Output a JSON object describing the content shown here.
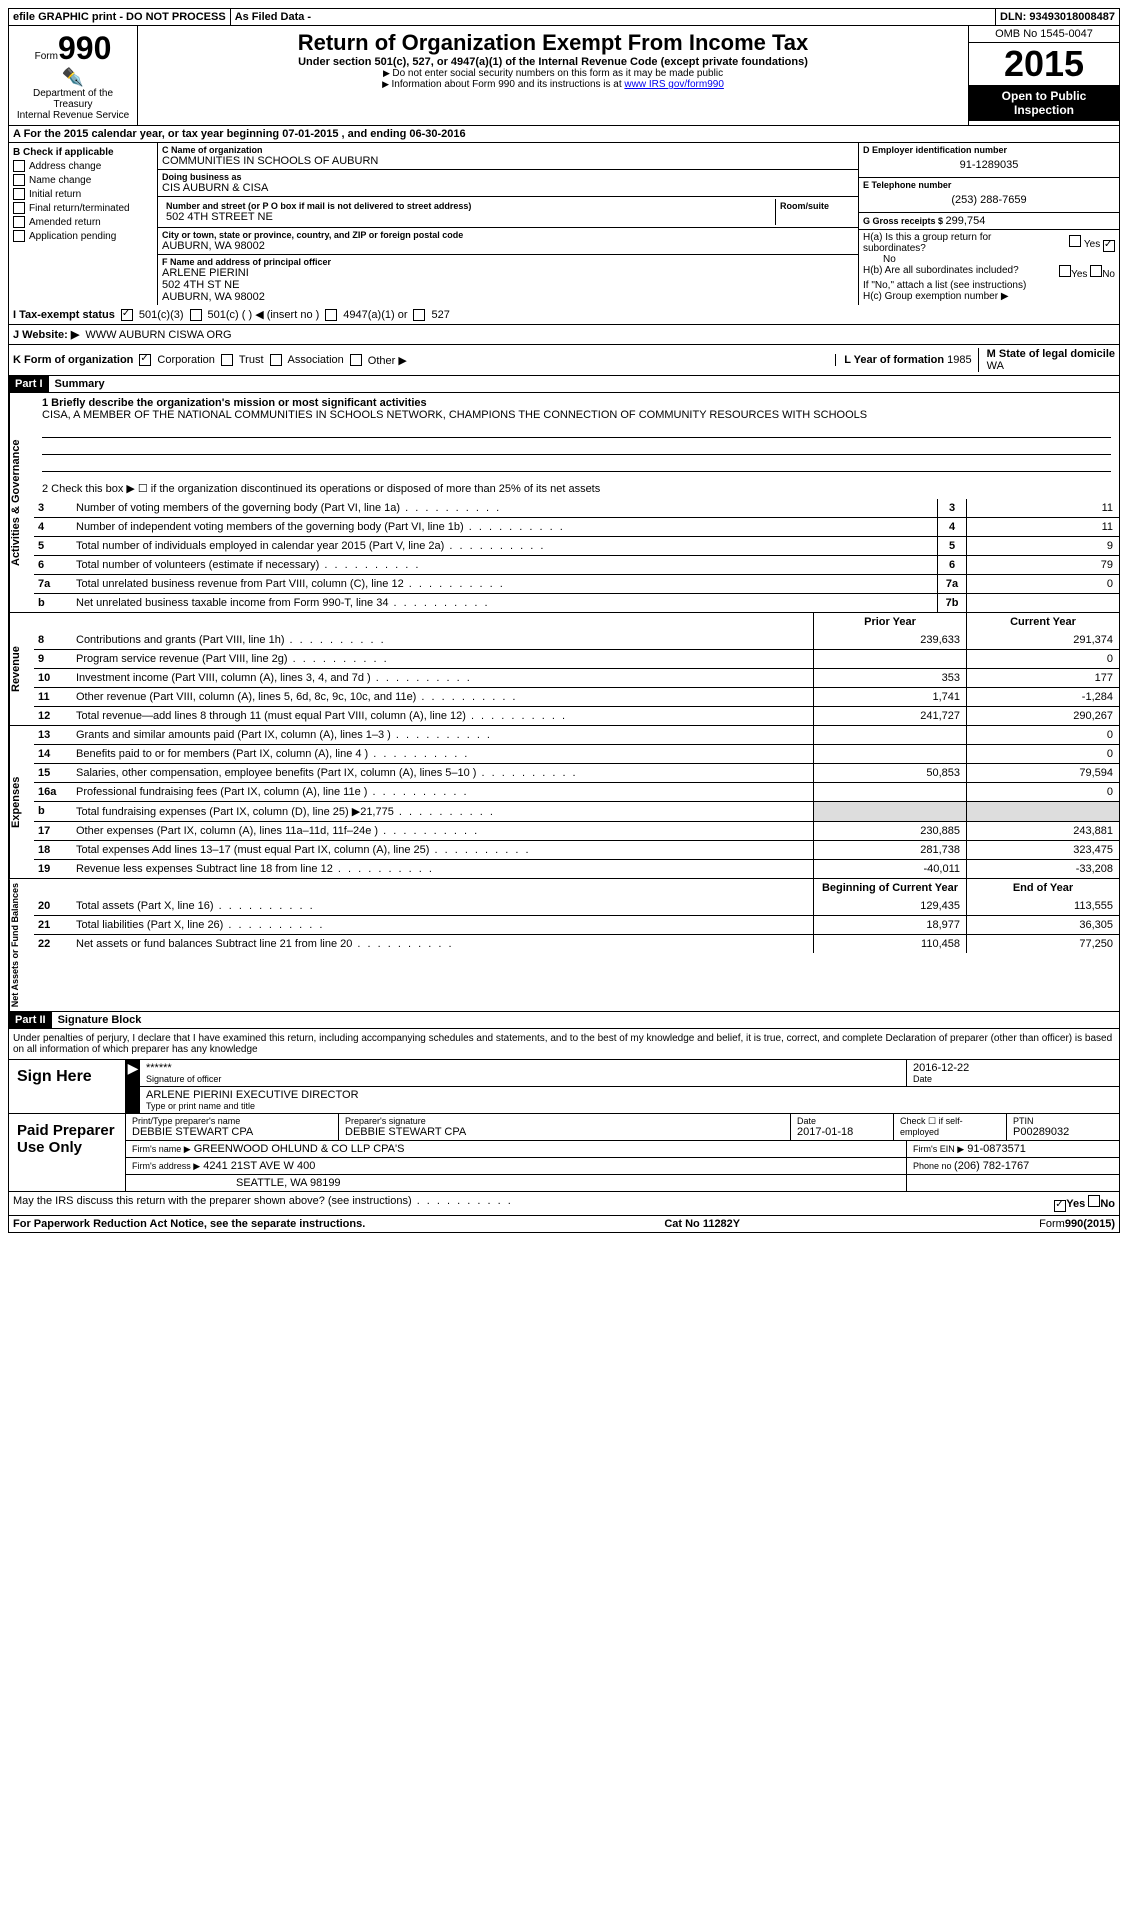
{
  "topbar": {
    "left": "efile GRAPHIC print - DO NOT PROCESS",
    "mid": "As Filed Data -",
    "dln": "DLN: 93493018008487"
  },
  "header": {
    "form_prefix": "Form",
    "form_num": "990",
    "dept1": "Department of the Treasury",
    "dept2": "Internal Revenue Service",
    "title": "Return of Organization Exempt From Income Tax",
    "subtitle": "Under section 501(c), 527, or 4947(a)(1) of the Internal Revenue Code (except private foundations)",
    "instr1": "Do not enter social security numbers on this form as it may be made public",
    "instr2_pre": "Information about Form 990 and its instructions is at ",
    "instr2_link": "www IRS gov/form990",
    "omb": "OMB No 1545-0047",
    "year": "2015",
    "open1": "Open to Public",
    "open2": "Inspection"
  },
  "rowA": {
    "text_pre": "A  For the 2015 calendar year, or tax year beginning ",
    "begin": "07-01-2015",
    "mid": " , and ending ",
    "end": "06-30-2016"
  },
  "colB": {
    "title": "B Check if applicable",
    "items": [
      "Address change",
      "Name change",
      "Initial return",
      "Final return/terminated",
      "Amended return",
      "Application pending"
    ]
  },
  "colC": {
    "name_label": "C Name of organization",
    "name": "COMMUNITIES IN SCHOOLS OF AUBURN",
    "dba_label": "Doing business as",
    "dba": "CIS AUBURN & CISA",
    "street_label": "Number and street (or P O box if mail is not delivered to street address)",
    "room_label": "Room/suite",
    "street": "502 4TH STREET NE",
    "city_label": "City or town, state or province, country, and ZIP or foreign postal code",
    "city": "AUBURN, WA 98002",
    "officer_label": "F Name and address of principal officer",
    "officer_name": "ARLENE PIERINI",
    "officer_street": "502 4TH ST NE",
    "officer_city": "AUBURN, WA 98002"
  },
  "colD": {
    "d_label": "D Employer identification number",
    "d_val": "91-1289035",
    "e_label": "E Telephone number",
    "e_val": "(253) 288-7659",
    "g_label": "G Gross receipts $ ",
    "g_val": "299,754",
    "ha_label": "H(a) Is this a group return for subordinates?",
    "ha_no": "No",
    "hb_label": "H(b) Are all subordinates included?",
    "hb_note": "If \"No,\" attach a list  (see instructions)",
    "hc_label": "H(c) Group exemption number ▶",
    "yes": "Yes",
    "no": "No"
  },
  "rowI": {
    "label": "I  Tax-exempt status",
    "opt1": "501(c)(3)",
    "opt2": "501(c) (   ) ◀ (insert no )",
    "opt3": "4947(a)(1) or",
    "opt4": "527"
  },
  "rowJ": {
    "label": "J  Website: ▶",
    "val": "WWW AUBURN CISWA ORG"
  },
  "rowK": {
    "label": "K Form of organization",
    "opts": [
      "Corporation",
      "Trust",
      "Association",
      "Other ▶"
    ],
    "l_label": "L Year of formation  ",
    "l_val": "1985",
    "m_label": "M State of legal domicile",
    "m_val": "WA"
  },
  "part1": {
    "header": "Part I",
    "title": "Summary",
    "line1_label": "1 Briefly describe the organization's mission or most significant activities",
    "line1_text": "CISA, A MEMBER OF THE NATIONAL COMMUNITIES IN SCHOOLS NETWORK, CHAMPIONS THE CONNECTION OF COMMUNITY RESOURCES WITH SCHOOLS",
    "line2": "2 Check this box ▶ ☐ if the organization discontinued its operations or disposed of more than 25% of its net assets",
    "gov_lines": [
      {
        "n": "3",
        "d": "Number of voting members of the governing body (Part VI, line 1a)",
        "box": "3",
        "v": "11"
      },
      {
        "n": "4",
        "d": "Number of independent voting members of the governing body (Part VI, line 1b)",
        "box": "4",
        "v": "11"
      },
      {
        "n": "5",
        "d": "Total number of individuals employed in calendar year 2015 (Part V, line 2a)",
        "box": "5",
        "v": "9"
      },
      {
        "n": "6",
        "d": "Total number of volunteers (estimate if necessary)",
        "box": "6",
        "v": "79"
      },
      {
        "n": "7a",
        "d": "Total unrelated business revenue from Part VIII, column (C), line 12",
        "box": "7a",
        "v": "0"
      },
      {
        "n": "b",
        "d": "Net unrelated business taxable income from Form 990-T, line 34",
        "box": "7b",
        "v": ""
      }
    ],
    "prior": "Prior Year",
    "current": "Current Year",
    "rev_lines": [
      {
        "n": "8",
        "d": "Contributions and grants (Part VIII, line 1h)",
        "p": "239,633",
        "c": "291,374"
      },
      {
        "n": "9",
        "d": "Program service revenue (Part VIII, line 2g)",
        "p": "",
        "c": "0"
      },
      {
        "n": "10",
        "d": "Investment income (Part VIII, column (A), lines 3, 4, and 7d )",
        "p": "353",
        "c": "177"
      },
      {
        "n": "11",
        "d": "Other revenue (Part VIII, column (A), lines 5, 6d, 8c, 9c, 10c, and 11e)",
        "p": "1,741",
        "c": "-1,284"
      },
      {
        "n": "12",
        "d": "Total revenue—add lines 8 through 11 (must equal Part VIII, column (A), line 12)",
        "p": "241,727",
        "c": "290,267"
      }
    ],
    "exp_lines": [
      {
        "n": "13",
        "d": "Grants and similar amounts paid (Part IX, column (A), lines 1–3 )",
        "p": "",
        "c": "0"
      },
      {
        "n": "14",
        "d": "Benefits paid to or for members (Part IX, column (A), line 4 )",
        "p": "",
        "c": "0"
      },
      {
        "n": "15",
        "d": "Salaries, other compensation, employee benefits (Part IX, column (A), lines 5–10 )",
        "p": "50,853",
        "c": "79,594"
      },
      {
        "n": "16a",
        "d": "Professional fundraising fees (Part IX, column (A), line 11e )",
        "p": "",
        "c": "0"
      },
      {
        "n": "b",
        "d": "Total fundraising expenses (Part IX, column (D), line 25) ▶21,775",
        "p": "",
        "c": "",
        "shaded": true
      },
      {
        "n": "17",
        "d": "Other expenses (Part IX, column (A), lines 11a–11d, 11f–24e )",
        "p": "230,885",
        "c": "243,881"
      },
      {
        "n": "18",
        "d": "Total expenses  Add lines 13–17 (must equal Part IX, column (A), line 25)",
        "p": "281,738",
        "c": "323,475"
      },
      {
        "n": "19",
        "d": "Revenue less expenses  Subtract line 18 from line 12",
        "p": "-40,011",
        "c": "-33,208"
      }
    ],
    "begin": "Beginning of Current Year",
    "end": "End of Year",
    "net_lines": [
      {
        "n": "20",
        "d": "Total assets (Part X, line 16)",
        "p": "129,435",
        "c": "113,555"
      },
      {
        "n": "21",
        "d": "Total liabilities (Part X, line 26)",
        "p": "18,977",
        "c": "36,305"
      },
      {
        "n": "22",
        "d": "Net assets or fund balances  Subtract line 21 from line 20",
        "p": "110,458",
        "c": "77,250"
      }
    ],
    "side_gov": "Activities & Governance",
    "side_rev": "Revenue",
    "side_exp": "Expenses",
    "side_net": "Net Assets or Fund Balances"
  },
  "part2": {
    "header": "Part II",
    "title": "Signature Block",
    "decl": "Under penalties of perjury, I declare that I have examined this return, including accompanying schedules and statements, and to the best of my knowledge and belief, it is true, correct, and complete  Declaration of preparer (other than officer) is based on all information of which preparer has any knowledge",
    "sign_here": "Sign Here",
    "sig_stars": "******",
    "sig_officer_label": "Signature of officer",
    "sig_date": "2016-12-22",
    "date_label": "Date",
    "officer_name": "ARLENE PIERINI EXECUTIVE DIRECTOR",
    "officer_name_label": "Type or print name and title",
    "paid": "Paid Preparer Use Only",
    "prep_name_label": "Print/Type preparer's name",
    "prep_name": "DEBBIE STEWART CPA",
    "prep_sig_label": "Preparer's signature",
    "prep_sig": "DEBBIE STEWART CPA",
    "prep_date_label": "Date",
    "prep_date": "2017-01-18",
    "check_label": "Check ☐ if self-employed",
    "ptin_label": "PTIN",
    "ptin": "P00289032",
    "firm_name_label": "Firm's name    ▶",
    "firm_name": "GREENWOOD OHLUND & CO LLP CPA'S",
    "firm_ein_label": "Firm's EIN ▶",
    "firm_ein": "91-0873571",
    "firm_addr_label": "Firm's address ▶",
    "firm_addr1": "4241 21ST AVE W 400",
    "firm_addr2": "SEATTLE, WA 98199",
    "phone_label": "Phone no  ",
    "phone": "(206) 782-1767",
    "discuss": "May the IRS discuss this return with the preparer shown above? (see instructions)",
    "yes": "Yes",
    "no": "No"
  },
  "footer": {
    "left": "For Paperwork Reduction Act Notice, see the separate instructions.",
    "mid": "Cat No 11282Y",
    "right": "Form 990 (2015)"
  }
}
